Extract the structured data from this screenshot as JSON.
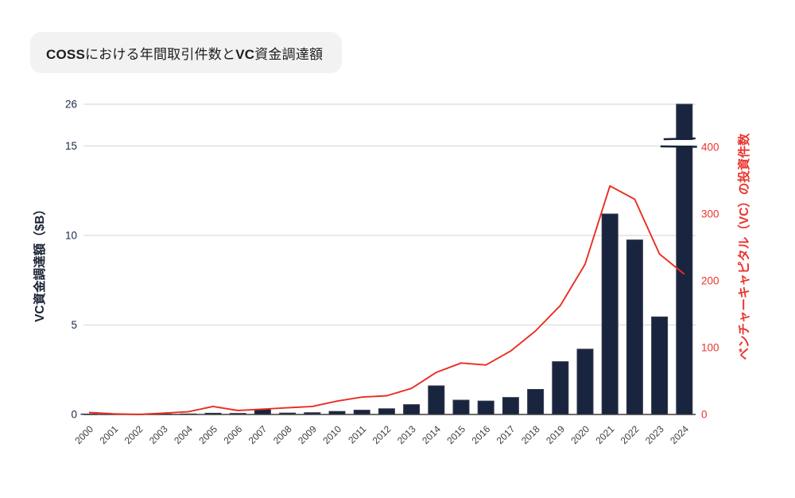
{
  "title": {
    "full": "COSSにおける年間取引件数とVC資金調達額",
    "segments": [
      {
        "text": "COSS",
        "bold": true
      },
      {
        "text": "における年間取引件数と",
        "bold": false
      },
      {
        "text": "VC",
        "bold": true
      },
      {
        "text": "資金調達額",
        "bold": false
      }
    ]
  },
  "chart_data": {
    "type": "bar",
    "subtype": "combo-bar-line-dual-axis",
    "categories": [
      "2000",
      "2001",
      "2002",
      "2003",
      "2004",
      "2005",
      "2006",
      "2007",
      "2008",
      "2009",
      "2010",
      "2011",
      "2012",
      "2013",
      "2014",
      "2015",
      "2016",
      "2017",
      "2018",
      "2019",
      "2020",
      "2021",
      "2022",
      "2023",
      "2024"
    ],
    "series": [
      {
        "name": "VC資金調達額 ($B)",
        "type": "bar",
        "axis": "left",
        "color": "#19243f",
        "values": [
          0.01,
          0.01,
          0.01,
          0.02,
          0.03,
          0.07,
          0.06,
          0.28,
          0.08,
          0.1,
          0.17,
          0.24,
          0.32,
          0.55,
          1.6,
          0.8,
          0.75,
          0.95,
          1.4,
          2.95,
          3.65,
          11.2,
          9.75,
          5.45,
          26
        ]
      },
      {
        "name": "ベンチャーキャピタル（VC）の投資件数",
        "type": "line",
        "axis": "right",
        "color": "#ea2e22",
        "values": [
          3,
          1,
          0,
          2,
          4,
          12,
          6,
          8,
          10,
          12,
          20,
          26,
          28,
          39,
          63,
          77,
          74,
          95,
          125,
          163,
          225,
          342,
          322,
          240,
          210
        ]
      }
    ],
    "left_axis": {
      "label": "VC資金調達額（$B）",
      "ticks": [
        0,
        5,
        10,
        15,
        26
      ],
      "axis_break_between": [
        15,
        26
      ],
      "color": "#1b2a4a",
      "range_note": "linear 0-15, broken axis up to 26"
    },
    "right_axis": {
      "label": "ベンチャーキャピタル（VC）の投資件数",
      "ticks": [
        0,
        100,
        200,
        300,
        400
      ],
      "color": "#e8362f",
      "range": [
        0,
        400
      ]
    },
    "grid": true,
    "legend_position": "none",
    "x_label_rotation": -45
  },
  "colors": {
    "bar_fill": "#19243f",
    "bar_stroke": "#343b4c",
    "line_red": "#ea2e22",
    "gridline": "#dcdcdc",
    "axis_line": "#3d3d3d",
    "x_label": "#3c3c3c",
    "left_tick": "#1b2a4a",
    "right_tick": "#e8362f",
    "title_chip_bg": "#f2f2f3"
  }
}
